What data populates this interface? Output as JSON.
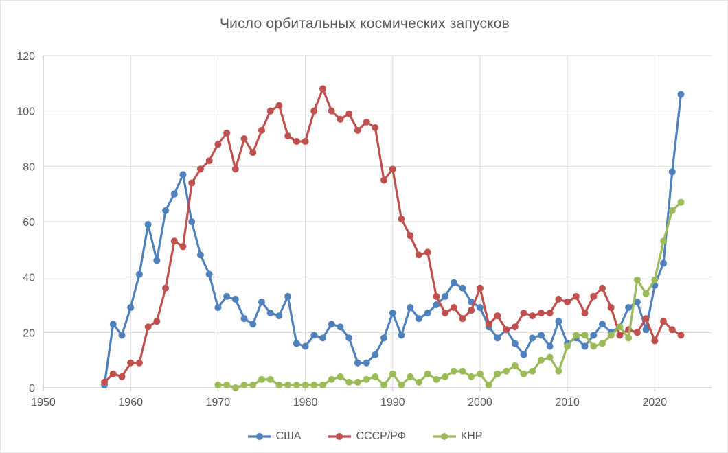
{
  "page": {
    "background": "#ffffff",
    "frame_border_color": "#e3e3e3"
  },
  "chart_data": {
    "type": "line",
    "title": "Число орбитальных космических запусков",
    "title_color": "#595959",
    "xlabel": "",
    "ylabel": "",
    "axis": {
      "x_ticks": [
        1950,
        1960,
        1970,
        1980,
        1990,
        2000,
        2010,
        2020
      ],
      "y_ticks": [
        0,
        20,
        40,
        60,
        80,
        100,
        120
      ],
      "xlim": [
        1950,
        2026.5
      ],
      "ylim": [
        0,
        120
      ],
      "grid": true,
      "gridline_color": "#d9d9d9",
      "axis_line_color": "#bfbfbf",
      "tick_label_color": "#595959",
      "tick_font_size": 16
    },
    "legend": {
      "position": "bottom"
    },
    "marker_radius": 5,
    "line_width": 3.2,
    "series": [
      {
        "name": "США",
        "key": "usa",
        "color": "#4F81BD",
        "start_year": 1957,
        "values": [
          1,
          23,
          19,
          29,
          41,
          59,
          46,
          64,
          70,
          77,
          60,
          48,
          41,
          29,
          33,
          32,
          25,
          23,
          31,
          27,
          26,
          33,
          16,
          15,
          19,
          18,
          23,
          22,
          18,
          9,
          9,
          12,
          18,
          27,
          19,
          29,
          25,
          27,
          30,
          33,
          38,
          36,
          31,
          29,
          22,
          18,
          21,
          16,
          12,
          18,
          19,
          15,
          24,
          16,
          18,
          15,
          19,
          23,
          20,
          22,
          29,
          31,
          21,
          37,
          45,
          78,
          106
        ]
      },
      {
        "name": "СССР/РФ",
        "key": "ussr-rf",
        "color": "#C0504D",
        "start_year": 1957,
        "values": [
          2,
          5,
          4,
          9,
          9,
          22,
          24,
          36,
          53,
          51,
          74,
          79,
          82,
          88,
          92,
          79,
          90,
          85,
          93,
          100,
          102,
          91,
          89,
          89,
          100,
          108,
          100,
          97,
          99,
          93,
          96,
          94,
          75,
          79,
          61,
          55,
          48,
          49,
          33,
          27,
          29,
          25,
          28,
          36,
          23,
          26,
          21,
          22,
          27,
          26,
          27,
          27,
          32,
          31,
          33,
          27,
          33,
          36,
          29,
          19,
          21,
          20,
          25,
          17,
          24,
          21,
          19
        ]
      },
      {
        "name": "КНР",
        "key": "china",
        "color": "#9BBB59",
        "start_year": 1970,
        "values": [
          1,
          1,
          0,
          1,
          1,
          3,
          3,
          1,
          1,
          1,
          1,
          1,
          1,
          3,
          4,
          2,
          2,
          3,
          4,
          1,
          5,
          1,
          4,
          2,
          5,
          3,
          4,
          6,
          6,
          4,
          5,
          1,
          5,
          6,
          8,
          5,
          6,
          10,
          11,
          6,
          15,
          19,
          19,
          15,
          16,
          19,
          22,
          18,
          39,
          34,
          39,
          53,
          64,
          67
        ]
      }
    ]
  }
}
